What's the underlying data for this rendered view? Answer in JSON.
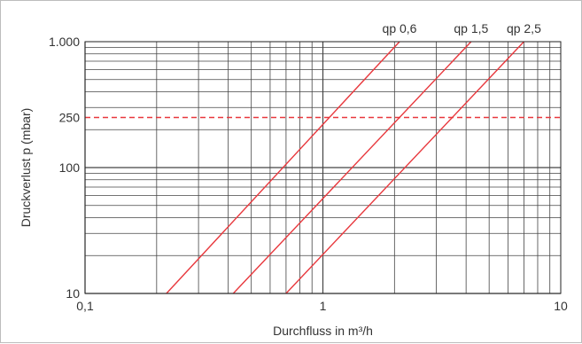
{
  "chart_data": {
    "type": "line",
    "title": "",
    "xlabel": "Durchfluss in m³/h",
    "ylabel": "Druckverlust p (mbar)",
    "x_scale": "log",
    "y_scale": "log",
    "xlim": [
      0.1,
      10
    ],
    "ylim": [
      10,
      1000
    ],
    "x_ticks": [
      {
        "value": 0.1,
        "label": "0,1"
      },
      {
        "value": 1,
        "label": "1"
      },
      {
        "value": 10,
        "label": "10"
      }
    ],
    "y_ticks": [
      {
        "value": 10,
        "label": "10"
      },
      {
        "value": 100,
        "label": "100"
      },
      {
        "value": 250,
        "label": "250",
        "color": "#e8383d"
      },
      {
        "value": 1000,
        "label": "1.000"
      }
    ],
    "grid": true,
    "reference_line": {
      "y": 250,
      "style": "dashed",
      "color": "#e8383d"
    },
    "series_color": "#e8383d",
    "series": [
      {
        "name": "qp 0,6",
        "x": [
          0.22,
          2.1
        ],
        "y": [
          10,
          1000
        ]
      },
      {
        "name": "qp 1,5",
        "x": [
          0.42,
          4.2
        ],
        "y": [
          10,
          1000
        ]
      },
      {
        "name": "qp 2,5",
        "x": [
          0.7,
          7.0
        ],
        "y": [
          10,
          1000
        ]
      }
    ]
  }
}
